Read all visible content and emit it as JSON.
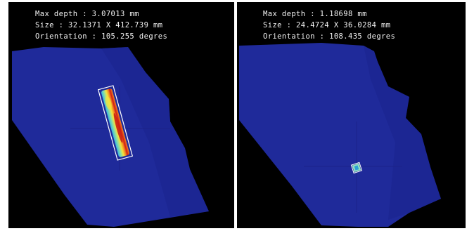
{
  "panels": [
    {
      "max_depth": "Max depth : 3.07013 mm",
      "size": "Size : 32.1371 X 412.739 mm",
      "orientation": "Orientation : 105.255 degres"
    },
    {
      "max_depth": "Max depth : 1.18698 mm",
      "size": "Size : 24.4724 X 36.0284 mm",
      "orientation": "Orientation : 108.435 degres"
    }
  ],
  "colors": {
    "background": "#000000",
    "surface": "#1f2a9a",
    "crosshair": "#1b238a",
    "bounding_box": "#ffffff",
    "depth_low": "#35b6e6",
    "depth_mid": "#f4e23b",
    "depth_high": "#d21a14"
  }
}
